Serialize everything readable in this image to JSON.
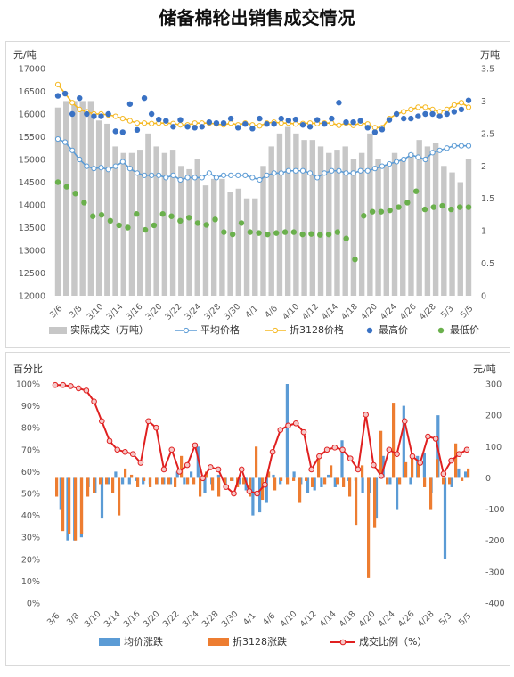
{
  "title": "储备棉轮出销售成交情况",
  "colors": {
    "volume_bar": "#c7c7c7",
    "avg_price": "#5b9bd5",
    "adj_price": "#f5b821",
    "max_price": "#3a72c4",
    "min_price": "#6ab04c",
    "avg_change": "#5b9bd5",
    "adj_change": "#ed7d31",
    "ratio": "#e02020"
  },
  "chart_data": [
    {
      "type": "bar+line",
      "ylabel_left": "元/吨",
      "ylabel_right": "万吨",
      "ylim_left": [
        12000,
        17000
      ],
      "ylim_right": [
        0,
        3.5
      ],
      "yticks_left": [
        "12000",
        "12500",
        "13000",
        "13500",
        "14000",
        "14500",
        "15000",
        "15500",
        "16000",
        "16500",
        "17000"
      ],
      "yticks_right": [
        "0",
        "0.5",
        "1",
        "1.5",
        "2",
        "2.5",
        "3",
        "3.5"
      ],
      "x_tick_labels": [
        "3/6",
        "3/8",
        "3/10",
        "3/14",
        "3/16",
        "3/20",
        "3/22",
        "3/24",
        "3/28",
        "3/30",
        "4/1",
        "4/6",
        "4/10",
        "4/12",
        "4/14",
        "4/18",
        "4/20",
        "4/24",
        "4/26",
        "4/28",
        "5/3",
        "5/5"
      ],
      "legend": [
        "实际成交（万吨）",
        "平均价格",
        "折3128价格",
        "最高价",
        "最低价"
      ],
      "series": [
        {
          "name": "实际成交（万吨）",
          "axis": "right",
          "values": [
            2.9,
            3.0,
            3.0,
            3.0,
            3.0,
            2.7,
            2.65,
            2.3,
            2.2,
            2.2,
            2.25,
            2.5,
            2.3,
            2.2,
            2.25,
            2.0,
            1.95,
            2.1,
            1.7,
            1.8,
            1.8,
            1.6,
            1.65,
            1.5,
            1.5,
            2.0,
            2.3,
            2.5,
            2.6,
            2.5,
            2.4,
            2.4,
            2.3,
            2.2,
            2.25,
            2.3,
            2.1,
            2.2,
            2.5,
            2.1,
            2.0,
            2.2,
            2.1,
            2.2,
            2.4,
            2.3,
            2.35,
            2.0,
            1.9,
            1.75,
            2.1
          ]
        },
        {
          "name": "平均价格",
          "axis": "left",
          "values": [
            15450,
            15380,
            15200,
            15000,
            14850,
            14800,
            14820,
            14780,
            14850,
            14950,
            14800,
            14700,
            14650,
            14650,
            14650,
            14600,
            14650,
            14550,
            14600,
            14600,
            14600,
            14700,
            14600,
            14650,
            14650,
            14650,
            14650,
            14600,
            14550,
            14650,
            14700,
            14700,
            14750,
            14750,
            14750,
            14700,
            14600,
            14700,
            14750,
            14750,
            14700,
            14700,
            14750,
            14750,
            14800,
            14850,
            14900,
            14950,
            15000,
            15100,
            15050,
            15000,
            15150,
            15200,
            15250,
            15300,
            15300,
            15300
          ]
        },
        {
          "name": "折3128价格",
          "axis": "left",
          "values": [
            16650,
            16450,
            16250,
            16100,
            16050,
            16000,
            16000,
            15980,
            15950,
            15900,
            15850,
            15800,
            15800,
            15790,
            15800,
            15800,
            15790,
            15760,
            15760,
            15800,
            15800,
            15800,
            15780,
            15760,
            15800,
            15760,
            15800,
            15760,
            15740,
            15800,
            15820,
            15800,
            15800,
            15780,
            15790,
            15800,
            15790,
            15800,
            15800,
            15750,
            15800,
            15750,
            15800,
            15780,
            15700,
            15700,
            15900,
            16000,
            16050,
            16100,
            16150,
            16150,
            16100,
            16050,
            16100,
            16200,
            16250,
            16150
          ]
        },
        {
          "name": "最高价",
          "axis": "left",
          "values": [
            16400,
            16450,
            16000,
            16350,
            16000,
            15950,
            15950,
            16000,
            15620,
            15600,
            16220,
            15650,
            16350,
            16000,
            15880,
            15850,
            15720,
            15870,
            15720,
            15700,
            15720,
            15820,
            15800,
            15800,
            15900,
            15700,
            15780,
            15680,
            15900,
            15780,
            15780,
            15900,
            15860,
            15880,
            15760,
            15720,
            15870,
            15780,
            15900,
            16250,
            15820,
            15820,
            15850,
            15700,
            15600,
            15660,
            15870,
            16000,
            15900,
            15900,
            15950,
            16000,
            16000,
            15950,
            16000,
            16050,
            16100,
            16300
          ]
        },
        {
          "name": "最低价",
          "axis": "left",
          "values": [
            14500,
            14400,
            14250,
            14050,
            13750,
            13780,
            13650,
            13550,
            13500,
            13800,
            13450,
            13550,
            13800,
            13750,
            13650,
            13720,
            13600,
            13560,
            13680,
            13400,
            13350,
            13600,
            13400,
            13380,
            13350,
            13380,
            13400,
            13400,
            13350,
            13360,
            13340,
            13350,
            13400,
            13260,
            12800,
            13760,
            13850,
            13850,
            13880,
            13950,
            14050,
            14300,
            13900,
            13950,
            13980,
            13900,
            13950,
            13950
          ]
        }
      ]
    },
    {
      "type": "bar+line",
      "ylabel_left": "百分比",
      "ylabel_right": "元/吨",
      "ylim_left": [
        0,
        100
      ],
      "ylim_right": [
        -400,
        300
      ],
      "yticks_left": [
        "0%",
        "10%",
        "20%",
        "30%",
        "40%",
        "50%",
        "60%",
        "70%",
        "80%",
        "90%",
        "100%"
      ],
      "yticks_right": [
        "-400",
        "-300",
        "-200",
        "-100",
        "0",
        "100",
        "200",
        "300"
      ],
      "x_tick_labels": [
        "3/6",
        "3/8",
        "3/10",
        "3/14",
        "3/16",
        "3/20",
        "3/22",
        "3/24",
        "3/28",
        "3/30",
        "4/1",
        "4/6",
        "4/10",
        "4/12",
        "4/14",
        "4/18",
        "4/20",
        "4/24",
        "4/26",
        "4/28",
        "5/3",
        "5/5"
      ],
      "legend": [
        "均价涨跌",
        "折3128涨跌",
        "成交比例（%）"
      ],
      "series": [
        {
          "name": "均价涨跌",
          "axis": "right",
          "values": [
            0,
            -100,
            -200,
            -200,
            -190,
            -30,
            -50,
            -130,
            -20,
            20,
            -20,
            -20,
            -10,
            -20,
            -20,
            -20,
            -20,
            -20,
            20,
            -20,
            20,
            100,
            -50,
            -20,
            10,
            -20,
            -10,
            -20,
            -40,
            -120,
            -110,
            -80,
            10,
            -20,
            300,
            20,
            -20,
            -50,
            -40,
            -30,
            10,
            -30,
            120,
            -10,
            -10,
            -50,
            -50,
            -130,
            70,
            -20,
            -100,
            230,
            -20,
            70,
            80,
            -50,
            200,
            -260,
            -30,
            30,
            20
          ]
        },
        {
          "name": "折3128涨跌",
          "axis": "right",
          "values": [
            -60,
            -170,
            -180,
            -200,
            -180,
            -60,
            -50,
            -20,
            -20,
            -50,
            -120,
            30,
            10,
            -30,
            -10,
            -30,
            -20,
            -20,
            -20,
            -30,
            70,
            -20,
            -20,
            -60,
            20,
            -40,
            -60,
            -30,
            -10,
            -30,
            -20,
            -60,
            100,
            -70,
            20,
            -40,
            -10,
            -20,
            -10,
            -80,
            -10,
            -30,
            70,
            -20,
            40,
            -20,
            -30,
            -60,
            -150,
            40,
            -320,
            -160,
            150,
            -20,
            240,
            -20,
            50,
            80,
            50,
            -30,
            -100,
            60,
            -20,
            -20,
            110,
            -10,
            30
          ]
        },
        {
          "name": "成交比例（%）",
          "axis": "left",
          "values": [
            99.5,
            99.5,
            99,
            98,
            97,
            92,
            83,
            74,
            70,
            69,
            68,
            64,
            83,
            80,
            61,
            70,
            60,
            63,
            72,
            57,
            62,
            61,
            53,
            50,
            61,
            51,
            50,
            54,
            69,
            79,
            81,
            82,
            78,
            61,
            67,
            70,
            71,
            70,
            66,
            61,
            86,
            63,
            58,
            70,
            68,
            83,
            67,
            64,
            76,
            75,
            59,
            65,
            68,
            70
          ]
        }
      ]
    }
  ]
}
